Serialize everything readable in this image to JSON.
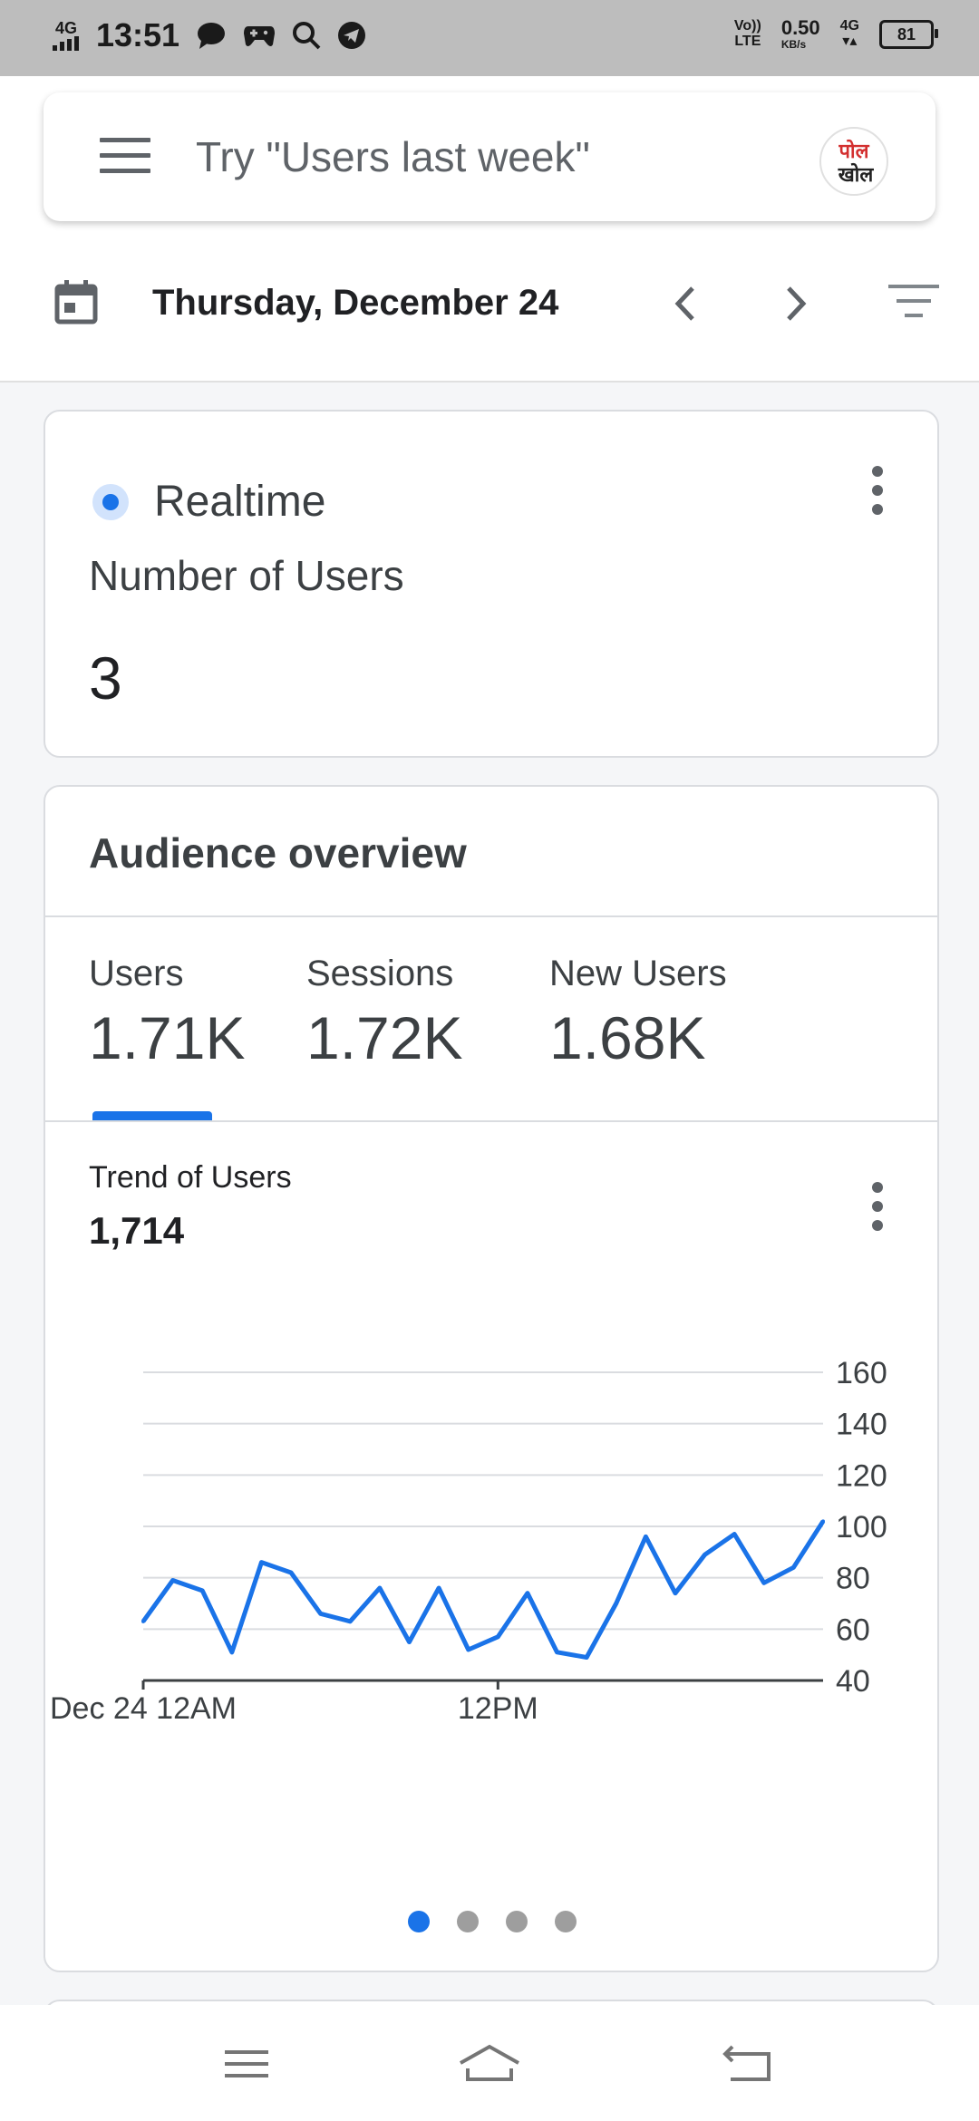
{
  "status_bar": {
    "time": "13:51",
    "network_left": "4G",
    "volte": "Vo))",
    "lte": "LTE",
    "speed_value": "0.50",
    "speed_unit": "KB/s",
    "network_right": "4G",
    "battery": "81"
  },
  "search": {
    "placeholder": "Try \"Users last week\"",
    "avatar_line1": "पोल",
    "avatar_line2": "खोल"
  },
  "datebar": {
    "date": "Thursday, December 24"
  },
  "realtime": {
    "label": "Realtime",
    "metric_label": "Number of Users",
    "metric_value": "3"
  },
  "audience": {
    "title": "Audience overview",
    "metrics": [
      {
        "label": "Users",
        "value": "1.71K"
      },
      {
        "label": "Sessions",
        "value": "1.72K"
      },
      {
        "label": "New Users",
        "value": "1.68K"
      }
    ],
    "trend_title": "Trend of Users",
    "trend_value": "1,714",
    "pager": {
      "count": 4,
      "active": 0
    }
  },
  "colors": {
    "accent": "#1a73e8",
    "status_bar_bg": "#bdbdbd",
    "card_border": "#dadce0"
  },
  "chart_data": {
    "type": "line",
    "title": "Trend of Users",
    "x_tick_labels": [
      "Dec 24 12AM",
      "12PM"
    ],
    "x_ticks_at_index": [
      0,
      12
    ],
    "y_ticks": [
      40,
      60,
      80,
      100,
      120,
      140,
      160
    ],
    "ylim": [
      40,
      160
    ],
    "grid": true,
    "y_axis_side": "right",
    "series": [
      {
        "color": "#1a73e8",
        "values": [
          63,
          79,
          75,
          51,
          86,
          82,
          66,
          63,
          76,
          55,
          76,
          52,
          57,
          74,
          51,
          49,
          70,
          96,
          74,
          89,
          97,
          78,
          84,
          102
        ]
      }
    ]
  }
}
